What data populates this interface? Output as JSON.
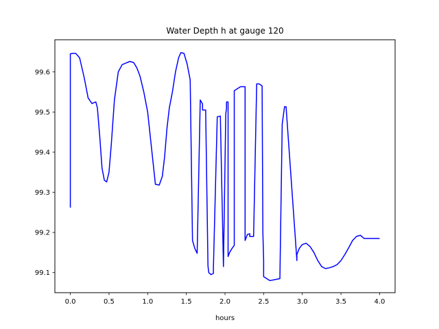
{
  "chart_data": {
    "type": "line",
    "title": "Water Depth h at gauge 120",
    "xlabel": "hours",
    "ylabel": "",
    "xlim": [
      -0.2,
      4.2
    ],
    "ylim": [
      99.05,
      99.68
    ],
    "xticks": [
      0.0,
      0.5,
      1.0,
      1.5,
      2.0,
      2.5,
      3.0,
      3.5,
      4.0
    ],
    "xtick_labels": [
      "0.0",
      "0.5",
      "1.0",
      "1.5",
      "2.0",
      "2.5",
      "3.0",
      "3.5",
      "4.0"
    ],
    "yticks": [
      99.1,
      99.2,
      99.3,
      99.4,
      99.5,
      99.6
    ],
    "ytick_labels": [
      "99.1",
      "99.2",
      "99.3",
      "99.4",
      "99.5",
      "99.6"
    ],
    "grid": false,
    "series": [
      {
        "color": "#0000ff",
        "x": [
          0.0,
          0.0,
          0.03,
          0.07,
          0.12,
          0.18,
          0.23,
          0.28,
          0.3,
          0.33,
          0.35,
          0.38,
          0.41,
          0.44,
          0.47,
          0.5,
          0.53,
          0.57,
          0.62,
          0.67,
          0.72,
          0.77,
          0.82,
          0.86,
          0.9,
          0.95,
          1.0,
          1.05,
          1.1,
          1.15,
          1.19,
          1.22,
          1.25,
          1.28,
          1.32,
          1.36,
          1.4,
          1.43,
          1.47,
          1.51,
          1.55,
          1.58,
          1.61,
          1.64,
          1.68,
          1.71,
          1.71,
          1.75,
          1.78,
          1.79,
          1.82,
          1.85,
          1.85,
          1.9,
          1.94,
          1.98,
          2.01,
          2.02,
          2.02,
          2.04,
          2.04,
          2.06,
          2.09,
          2.12,
          2.12,
          2.2,
          2.26,
          2.26,
          2.29,
          2.32,
          2.32,
          2.37,
          2.41,
          2.44,
          2.48,
          2.48,
          2.49,
          2.5,
          2.5,
          2.58,
          2.66,
          2.71,
          2.74,
          2.77,
          2.79,
          2.79,
          2.93,
          2.93,
          2.96,
          3.0,
          3.05,
          3.1,
          3.15,
          3.2,
          3.25,
          3.3,
          3.35,
          3.4,
          3.45,
          3.5,
          3.55,
          3.6,
          3.65,
          3.7,
          3.75,
          3.8,
          3.85,
          3.9,
          3.95,
          4.0
        ],
        "y": [
          99.262,
          99.645,
          99.646,
          99.646,
          99.635,
          99.585,
          99.535,
          99.521,
          99.523,
          99.525,
          99.51,
          99.44,
          99.36,
          99.33,
          99.326,
          99.35,
          99.42,
          99.53,
          99.6,
          99.618,
          99.622,
          99.626,
          99.623,
          99.61,
          99.59,
          99.55,
          99.5,
          99.41,
          99.32,
          99.318,
          99.34,
          99.39,
          99.46,
          99.51,
          99.55,
          99.6,
          99.635,
          99.648,
          99.646,
          99.62,
          99.58,
          99.18,
          99.16,
          99.148,
          99.53,
          99.52,
          99.505,
          99.505,
          99.117,
          99.1,
          99.095,
          99.098,
          99.11,
          99.488,
          99.49,
          99.115,
          99.495,
          99.51,
          99.525,
          99.525,
          99.14,
          99.15,
          99.16,
          99.168,
          99.553,
          99.563,
          99.563,
          99.18,
          99.195,
          99.197,
          99.19,
          99.19,
          99.57,
          99.57,
          99.565,
          99.565,
          99.2,
          99.13,
          99.09,
          99.08,
          99.083,
          99.085,
          99.47,
          99.513,
          99.513,
          99.513,
          99.13,
          99.145,
          99.16,
          99.17,
          99.173,
          99.165,
          99.15,
          99.13,
          99.115,
          99.11,
          99.112,
          99.115,
          99.12,
          99.13,
          99.145,
          99.162,
          99.18,
          99.19,
          99.193,
          99.185,
          99.185,
          99.185,
          99.185,
          99.185
        ]
      }
    ]
  }
}
